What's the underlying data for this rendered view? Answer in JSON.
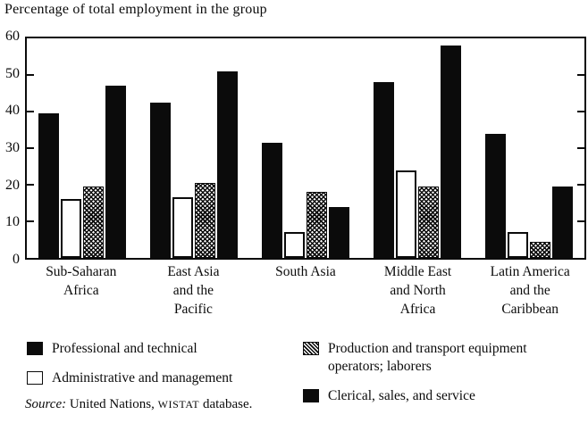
{
  "title": "Percentage of total employment in the group",
  "chart_data": {
    "type": "bar",
    "title": "Percentage of total employment in the group",
    "categories": [
      "Sub-Saharan\nAfrica",
      "East Asia\nand the\nPacific",
      "South Asia",
      "Middle East\nand North\nAfrica",
      "Latin America\nand the\nCaribbean"
    ],
    "series": [
      {
        "name": "Professional and technical",
        "style": "solid-black",
        "values": [
          39.5,
          42.5,
          31.5,
          48,
          34
        ]
      },
      {
        "name": "Administrative and management",
        "style": "white-outline",
        "values": [
          16,
          16.5,
          7,
          24,
          7
        ]
      },
      {
        "name": "Production and transport equipment operators; laborers",
        "style": "hatched",
        "values": [
          19.5,
          20.5,
          18,
          19.5,
          4.5
        ]
      },
      {
        "name": "Clerical, sales, and service",
        "style": "solid-black",
        "values": [
          47,
          51,
          14,
          58,
          19.5
        ]
      }
    ],
    "xlabel": "",
    "ylabel": "",
    "ylim": [
      0,
      60
    ],
    "yticks": [
      0,
      10,
      20,
      30,
      40,
      50,
      60
    ],
    "grid": false,
    "legend_position": "bottom"
  },
  "colors": {
    "ink": "#0b0b0b",
    "paper": "#ffffff"
  },
  "source": {
    "label_italic": "Source:",
    "text": " United Nations, ",
    "smallcaps": "WISTAT",
    "suffix": " database."
  }
}
